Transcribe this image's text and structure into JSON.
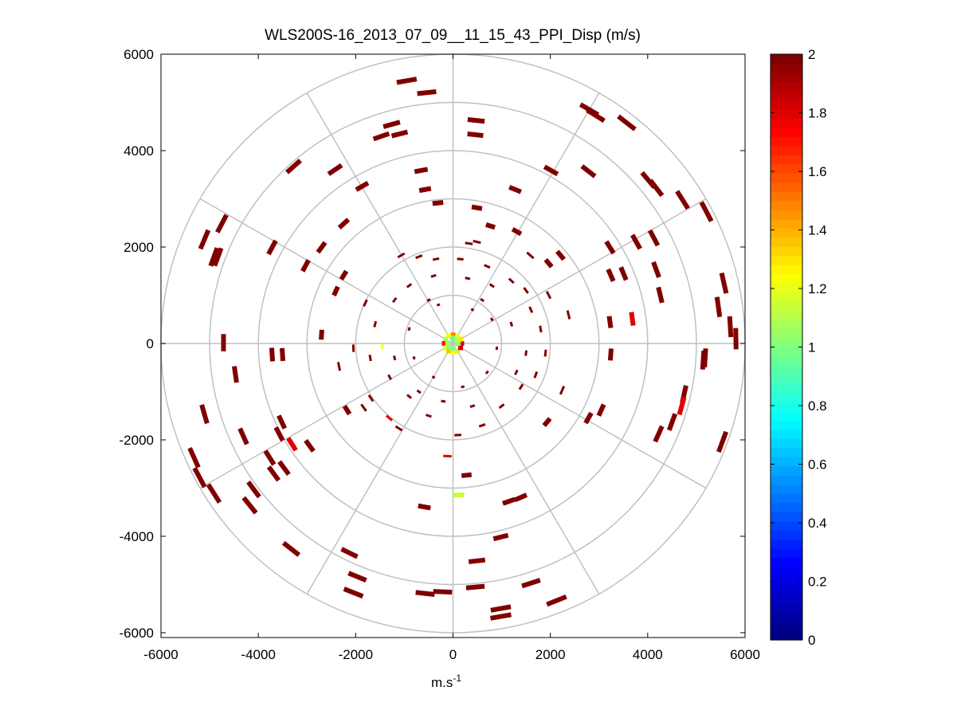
{
  "chart_data": {
    "type": "scatter",
    "subtype": "polar-ppi",
    "title": "WLS200S-16_2013_07_09__11_15_43_PPI_Disp (m/s)",
    "xlabel": "m.s",
    "xlabel_sup": "-1",
    "ylabel": "",
    "xlim": [
      -6000,
      6000
    ],
    "ylim": [
      -6100,
      6000
    ],
    "xticks": [
      "-6000",
      "-4000",
      "-2000",
      "0",
      "2000",
      "4000",
      "6000"
    ],
    "yticks": [
      "6000",
      "4000",
      "2000",
      "0",
      "-2000",
      "-4000",
      "-6000"
    ],
    "polar_grid": {
      "rings": [
        1000,
        2000,
        3000,
        4000,
        5000,
        6000
      ],
      "spoke_step_deg": 30,
      "color": "#c0c0c0"
    },
    "colorbar": {
      "colormap": "jet",
      "range": [
        0,
        2
      ],
      "ticks": [
        "0",
        "0.2",
        "0.4",
        "0.6",
        "0.8",
        "1",
        "1.2",
        "1.4",
        "1.6",
        "1.8",
        "2"
      ]
    },
    "points_columns": [
      "x",
      "y",
      "value"
    ],
    "points": [
      [
        -951,
        5449,
        2
      ],
      [
        -540,
        5202,
        2
      ],
      [
        -1260,
        4543,
        2
      ],
      [
        -1097,
        4346,
        2
      ],
      [
        475,
        4626,
        2
      ],
      [
        459,
        4329,
        2
      ],
      [
        -655,
        3588,
        2
      ],
      [
        -573,
        3193,
        2
      ],
      [
        -311,
        2914,
        2
      ],
      [
        491,
        2815,
        2
      ],
      [
        770,
        2436,
        2
      ],
      [
        1277,
        3193,
        2
      ],
      [
        2014,
        3588,
        2
      ],
      [
        2783,
        3572,
        2
      ],
      [
        2800,
        4850,
        2
      ],
      [
        2930,
        4730,
        2
      ],
      [
        3569,
        4576,
        2
      ],
      [
        4011,
        3391,
        2
      ],
      [
        4175,
        3226,
        2
      ],
      [
        4715,
        2979,
        2
      ],
      [
        5206,
        2733,
        2
      ],
      [
        4126,
        2189,
        2
      ],
      [
        3765,
        2107,
        2
      ],
      [
        3225,
        1992,
        2
      ],
      [
        3241,
        1416,
        2
      ],
      [
        3503,
        1449,
        2
      ],
      [
        4175,
        1531,
        2
      ],
      [
        4257,
        1004,
        2
      ],
      [
        5566,
        1251,
        2
      ],
      [
        5452,
        757,
        2
      ],
      [
        5697,
        346,
        2
      ],
      [
        5812,
        99,
        2
      ],
      [
        5141,
        -346,
        2
      ],
      [
        5180,
        -300,
        2
      ],
      [
        4748,
        -1053,
        2
      ],
      [
        4699,
        -1300,
        1.8
      ],
      [
        4224,
        -1877,
        2
      ],
      [
        4502,
        -1630,
        2
      ],
      [
        5534,
        -2041,
        2
      ],
      [
        3241,
        -230,
        2
      ],
      [
        3225,
        444,
        2
      ],
      [
        3684,
        510,
        1.8
      ],
      [
        2374,
        593,
        2
      ],
      [
        1965,
        1004,
        2
      ],
      [
        2210,
        1827,
        2
      ],
      [
        1965,
        1663,
        2
      ],
      [
        1588,
        1827,
        2
      ],
      [
        1310,
        2321,
        2
      ],
      [
        2243,
        -971,
        2
      ],
      [
        1932,
        -1630,
        2
      ],
      [
        2783,
        -1547,
        2
      ],
      [
        3045,
        -1383,
        2
      ],
      [
        1146,
        -3276,
        2
      ],
      [
        1392,
        -3193,
        2
      ],
      [
        982,
        -4016,
        2
      ],
      [
        491,
        -4510,
        2
      ],
      [
        459,
        -5053,
        2
      ],
      [
        982,
        -5498,
        2
      ],
      [
        982,
        -5663,
        2
      ],
      [
        1604,
        -4971,
        2
      ],
      [
        2128,
        -5333,
        2
      ],
      [
        278,
        -2733,
        2
      ],
      [
        115,
        -3144,
        1.15
      ],
      [
        -115,
        -2337,
        1.8
      ],
      [
        -589,
        -3391,
        2
      ],
      [
        -213,
        -5152,
        2
      ],
      [
        -573,
        -5185,
        2
      ],
      [
        -2046,
        -5168,
        2
      ],
      [
        -1965,
        -4839,
        2
      ],
      [
        -2128,
        -4345,
        2
      ],
      [
        -3323,
        -4263,
        2
      ],
      [
        -4175,
        -3358,
        2
      ],
      [
        -4093,
        -3029,
        2
      ],
      [
        -4912,
        -3111,
        2
      ],
      [
        -5206,
        -2782,
        2
      ],
      [
        -5320,
        -2370,
        2
      ],
      [
        -3684,
        -2700,
        2
      ],
      [
        -3766,
        -2370,
        2
      ],
      [
        -3471,
        -2584,
        2
      ],
      [
        -4306,
        -1926,
        2
      ],
      [
        -3519,
        -1630,
        2
      ],
      [
        -3569,
        -1877,
        2
      ],
      [
        -3307,
        -2091,
        1.8
      ],
      [
        -2947,
        -2123,
        2
      ],
      [
        -5108,
        -1465,
        2
      ],
      [
        -4470,
        -642,
        2
      ],
      [
        -4715,
        16,
        2
      ],
      [
        -3716,
        -230,
        2
      ],
      [
        -3503,
        -230,
        2
      ],
      [
        -2701,
        181,
        2
      ],
      [
        -2341,
        -477,
        2
      ],
      [
        -2177,
        -1383,
        2
      ],
      [
        -1834,
        -1333,
        2
      ],
      [
        -1686,
        -1136,
        2
      ],
      [
        -1310,
        -1547,
        1.8
      ],
      [
        -1113,
        -1761,
        2
      ],
      [
        -2046,
        -99,
        2
      ],
      [
        -5108,
        2156,
        2
      ],
      [
        -4912,
        1794,
        2
      ],
      [
        -4748,
        2486,
        2
      ],
      [
        -4830,
        1794,
        2
      ],
      [
        -3716,
        1992,
        2
      ],
      [
        -3029,
        1613,
        2
      ],
      [
        -2701,
        1992,
        2
      ],
      [
        -2243,
        2486,
        2
      ],
      [
        -2243,
        1416,
        2
      ],
      [
        -2407,
        1086,
        2
      ],
      [
        -1801,
        839,
        2
      ],
      [
        -2423,
        3605,
        2
      ],
      [
        -1867,
        3259,
        2
      ],
      [
        -3274,
        3671,
        2
      ],
      [
        -1473,
        4296,
        2
      ],
      [
        327,
        2074,
        2
      ],
      [
        491,
        2107,
        2
      ],
      [
        -1064,
        1827,
        2
      ],
      [
        -1450,
        -60,
        1.25
      ],
      [
        -700,
        1800,
        2
      ],
      [
        -350,
        1750,
        2
      ],
      [
        150,
        1750,
        2
      ],
      [
        700,
        1600,
        2
      ],
      [
        1200,
        1300,
        2
      ],
      [
        1500,
        1100,
        2
      ],
      [
        1600,
        700,
        2
      ],
      [
        1800,
        300,
        2
      ],
      [
        1900,
        -200,
        2
      ],
      [
        1700,
        -650,
        2
      ],
      [
        1400,
        -900,
        2
      ],
      [
        1000,
        -1300,
        2
      ],
      [
        600,
        -1700,
        2
      ],
      [
        100,
        -1900,
        2
      ],
      [
        -500,
        -1500,
        2
      ],
      [
        -900,
        -1100,
        2
      ],
      [
        -1300,
        -700,
        2
      ],
      [
        -1700,
        -300,
        2
      ],
      [
        -1600,
        400,
        2
      ],
      [
        -1200,
        900,
        2
      ],
      [
        -900,
        1200,
        2
      ],
      [
        -400,
        1400,
        2
      ],
      [
        300,
        1350,
        2
      ],
      [
        800,
        1200,
        2
      ],
      [
        -500,
        900,
        2
      ],
      [
        400,
        700,
        2
      ],
      [
        800,
        500,
        2
      ],
      [
        900,
        -100,
        2
      ],
      [
        700,
        -600,
        2
      ],
      [
        200,
        -900,
        2
      ],
      [
        -400,
        -700,
        2
      ],
      [
        -800,
        -300,
        2
      ],
      [
        -900,
        300,
        2
      ],
      [
        -300,
        800,
        2
      ],
      [
        1200,
        400,
        2
      ],
      [
        -1200,
        -300,
        2
      ],
      [
        1300,
        -600,
        2
      ],
      [
        -700,
        -1000,
        2
      ],
      [
        600,
        900,
        2
      ],
      [
        -200,
        -1200,
        2
      ],
      [
        1500,
        -200,
        2
      ],
      [
        400,
        -1300,
        2
      ]
    ],
    "center_points": [
      [
        180,
        0,
        1.8
      ],
      [
        156,
        90,
        1.3
      ],
      [
        90,
        156,
        1.2
      ],
      [
        0,
        180,
        1.5
      ],
      [
        -90,
        156,
        1.25
      ],
      [
        -156,
        90,
        1.1
      ],
      [
        -180,
        0,
        1.7
      ],
      [
        -156,
        -90,
        1.2
      ],
      [
        -90,
        -156,
        1.35
      ],
      [
        0,
        -180,
        1.25
      ],
      [
        90,
        -156,
        1.1
      ],
      [
        156,
        -90,
        1.8
      ],
      [
        110,
        0,
        1.0
      ],
      [
        0,
        110,
        0.95
      ],
      [
        -110,
        0,
        1.05
      ],
      [
        0,
        -110,
        1.0
      ],
      [
        78,
        78,
        1.1
      ],
      [
        -78,
        -78,
        1.0
      ]
    ]
  }
}
